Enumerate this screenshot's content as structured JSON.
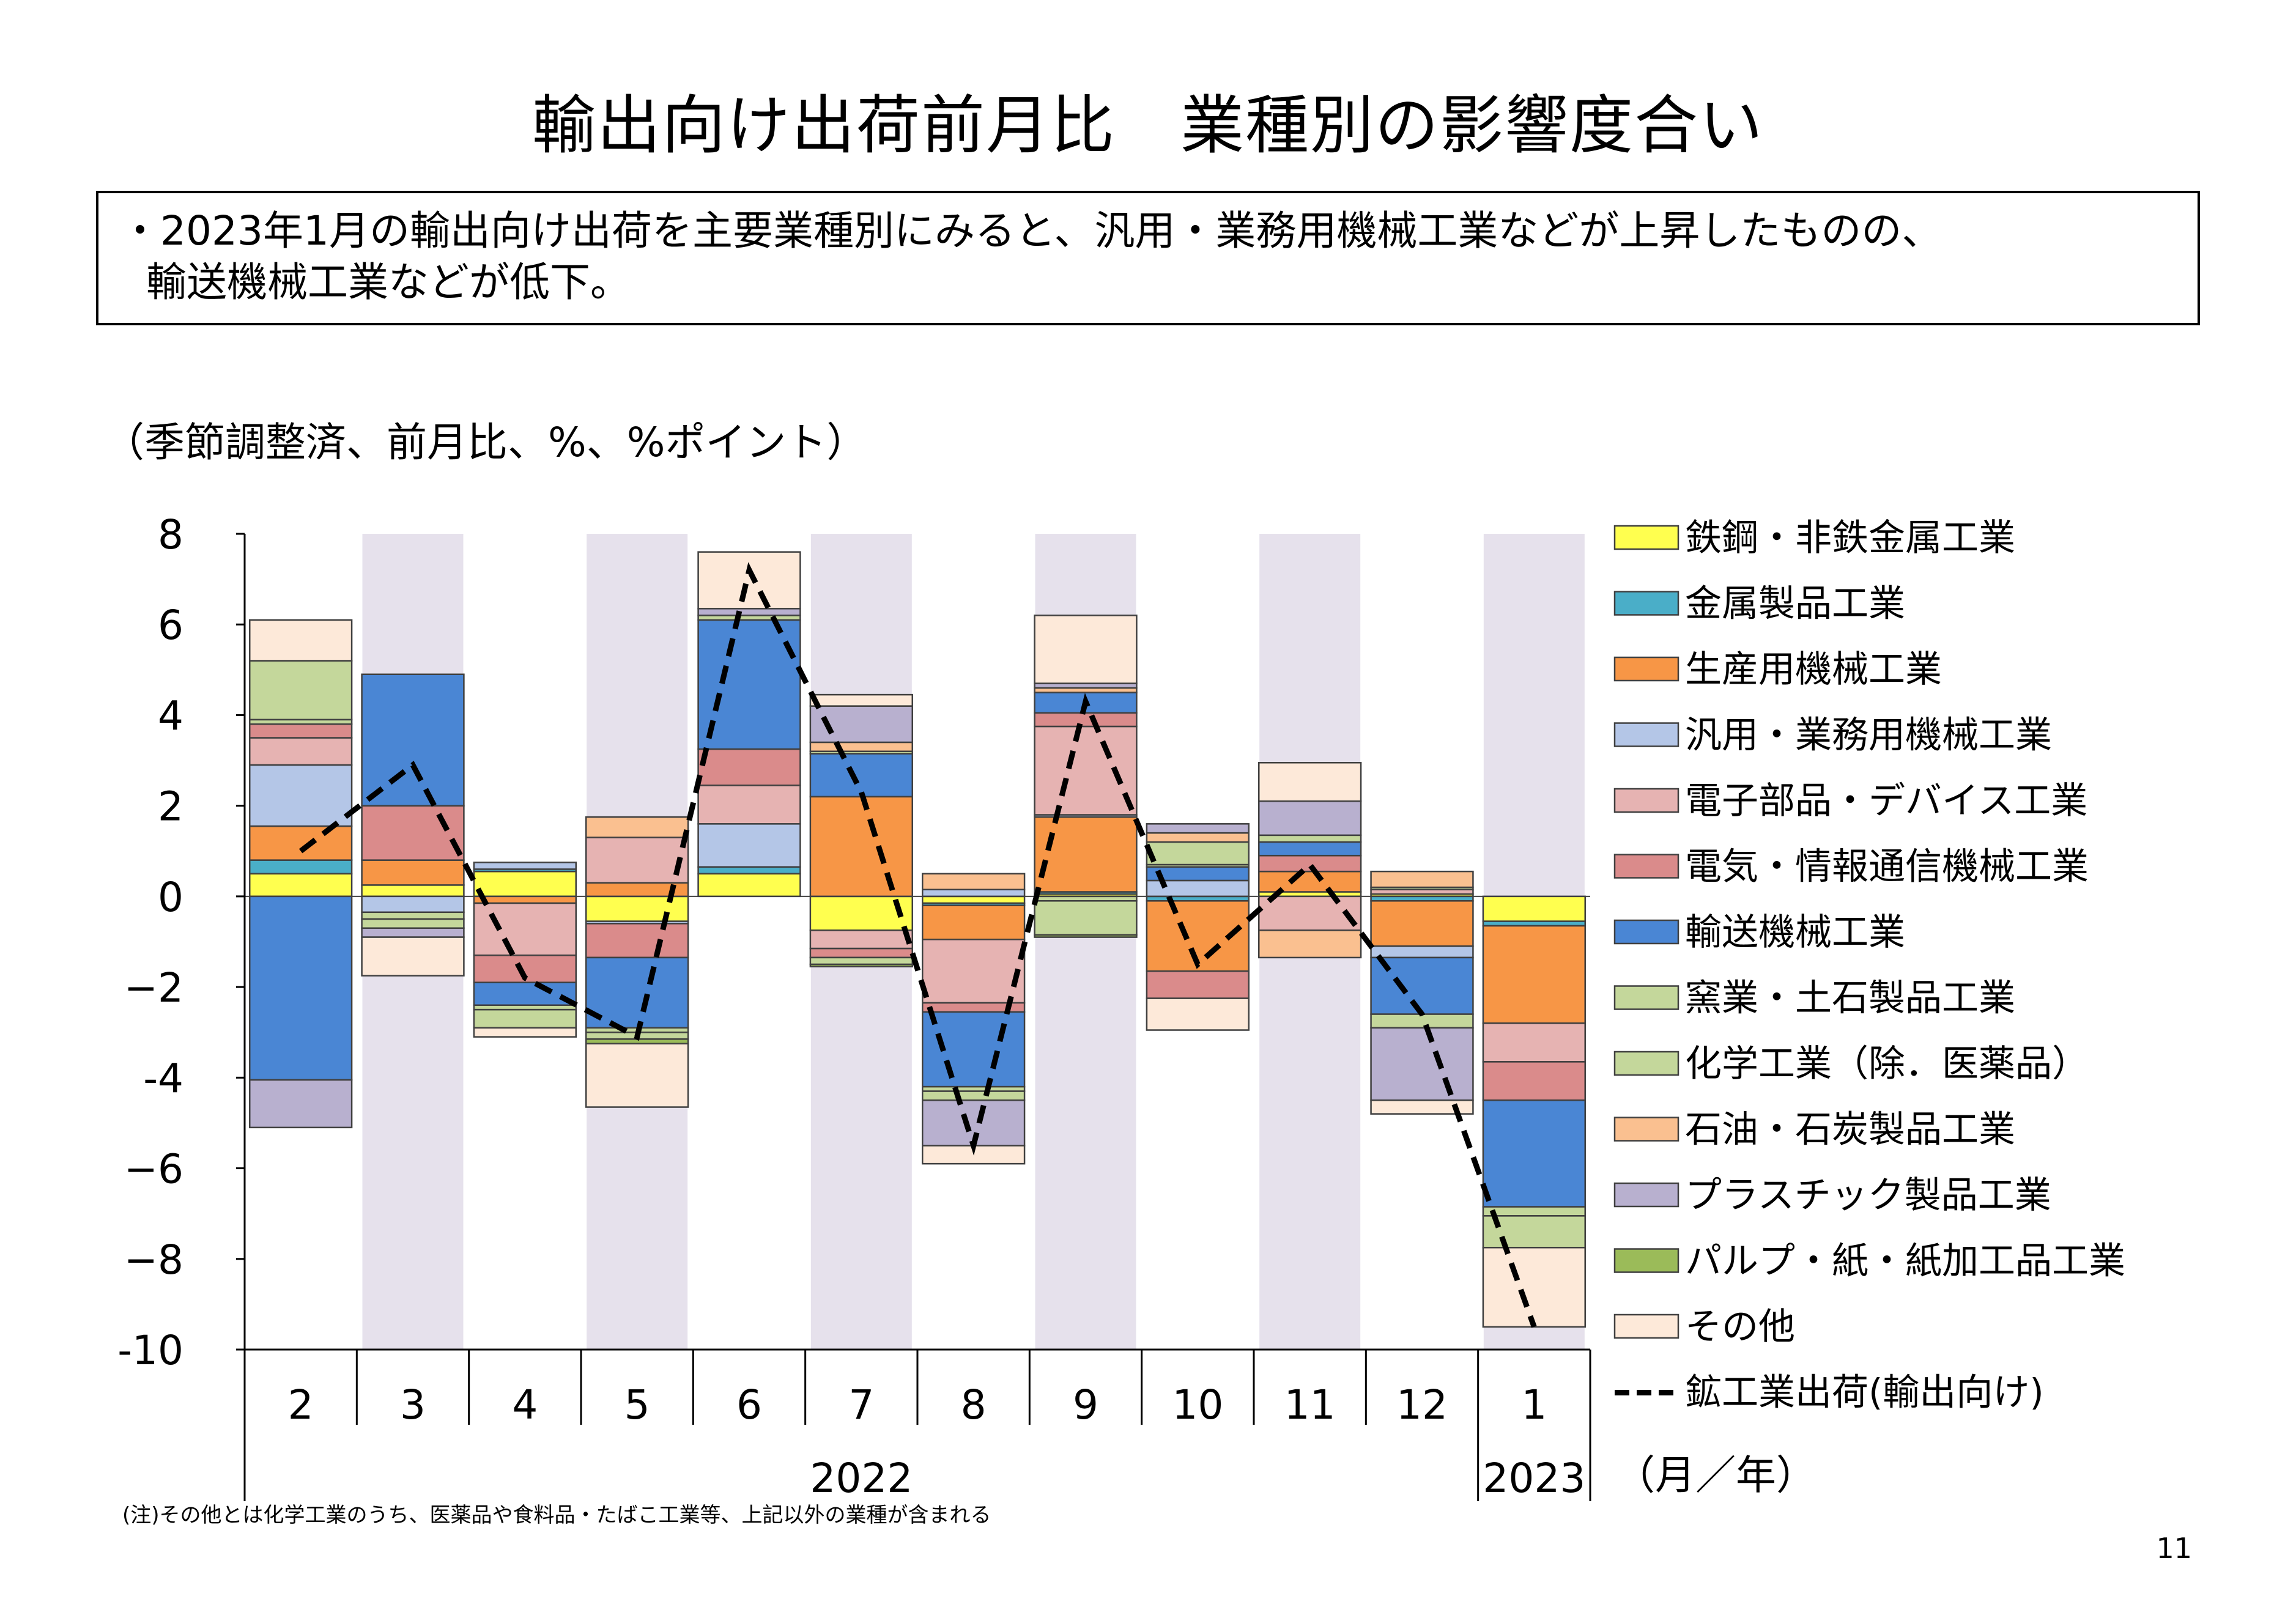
{
  "title": "輸出向け出荷前月比　業種別の影響度合い",
  "summary": {
    "line1": "・2023年1月の輸出向け出荷を主要業種別にみると、汎用・業務用機械工業などが上昇したものの、",
    "line2": "輸送機械工業などが低下。"
  },
  "unit_note": "（季節調整済、前月比、%、%ポイント）",
  "footnote": "(注)その他とは化学工業のうち、医薬品や食料品・たばこ工業等、上記以外の業種が含まれる",
  "page_number": "11",
  "chart_data": {
    "type": "bar",
    "stacked": true,
    "categories": [
      "2",
      "3",
      "4",
      "5",
      "6",
      "7",
      "8",
      "9",
      "10",
      "11",
      "12",
      "1"
    ],
    "year_labels": [
      {
        "label": "2022",
        "from": 0,
        "to": 10
      },
      {
        "label": "2023",
        "from": 11,
        "to": 11
      }
    ],
    "x_unit_label": "（月／年）",
    "ylim": [
      -10,
      8
    ],
    "yticks": [
      8,
      6,
      4,
      2,
      0,
      -2,
      -4,
      -6,
      -8,
      -10
    ],
    "ytick_labels": [
      "8",
      "6",
      "4",
      "2",
      "0",
      "−2",
      "-4",
      "−6",
      "−8",
      "-10"
    ],
    "shaded_categories": [
      1,
      3,
      5,
      7,
      9,
      11
    ],
    "shade_color": "#e6e1ec",
    "series": [
      {
        "name": "鉄鋼・非鉄金属工業",
        "color": "#ffff4f",
        "values": [
          0.5,
          0.25,
          0.55,
          -0.55,
          0.5,
          -0.75,
          -0.15,
          0.05,
          0.0,
          0.1,
          0.05,
          -0.55
        ]
      },
      {
        "name": "金属製品工業",
        "color": "#4aaec8",
        "values": [
          0.3,
          0.0,
          0.05,
          0.0,
          0.15,
          0.0,
          -0.05,
          0.05,
          -0.1,
          0.0,
          -0.1,
          -0.1
        ]
      },
      {
        "name": "生産用機械工業",
        "color": "#f79646",
        "values": [
          0.75,
          0.55,
          -0.15,
          0.3,
          0.0,
          2.2,
          -0.75,
          1.65,
          -1.55,
          0.45,
          -1.0,
          -2.15
        ]
      },
      {
        "name": "汎用・業務用機械工業",
        "color": "#b4c6e7",
        "values": [
          1.35,
          -0.35,
          0.15,
          -0.05,
          0.95,
          0.0,
          0.15,
          0.05,
          0.35,
          0.0,
          -0.25,
          0.0
        ]
      },
      {
        "name": "電子部品・デバイス工業",
        "color": "#e6b3b2",
        "values": [
          0.6,
          0.0,
          -1.15,
          1.0,
          0.85,
          -0.4,
          -1.4,
          1.95,
          0.0,
          -0.75,
          0.1,
          -0.85
        ]
      },
      {
        "name": "電気・情報通信機械工業",
        "color": "#da8b8b",
        "values": [
          0.3,
          1.2,
          -0.6,
          -0.75,
          0.8,
          -0.2,
          -0.2,
          0.3,
          -0.6,
          0.35,
          0.0,
          -0.85
        ]
      },
      {
        "name": "輸送機械工業",
        "color": "#4a86d4",
        "values": [
          -4.05,
          2.9,
          -0.5,
          -1.55,
          2.85,
          0.95,
          -1.65,
          0.45,
          0.3,
          0.3,
          -1.25,
          -2.35
        ]
      },
      {
        "name": "窯業・土石製品工業",
        "color": "#c4d79b",
        "values": [
          0.1,
          -0.15,
          -0.1,
          -0.1,
          0.1,
          0.05,
          -0.1,
          -0.1,
          0.05,
          0.0,
          0.05,
          -0.2
        ]
      },
      {
        "name": "化学工業（除．医薬品）",
        "color": "#c4d79b",
        "values": [
          1.3,
          -0.2,
          -0.4,
          -0.15,
          0.0,
          -0.15,
          -0.2,
          -0.75,
          0.5,
          0.15,
          -0.3,
          -0.7
        ]
      },
      {
        "name": "石油・石炭製品工業",
        "color": "#fac090",
        "values": [
          0.0,
          0.0,
          0.0,
          0.45,
          0.0,
          0.2,
          0.35,
          0.1,
          0.2,
          -0.6,
          0.35,
          0.0
        ]
      },
      {
        "name": "プラスチック製品工業",
        "color": "#b8b0cf",
        "values": [
          -1.05,
          -0.2,
          0.0,
          0.0,
          0.15,
          0.8,
          -1.0,
          0.1,
          0.2,
          0.75,
          -1.6,
          0.0
        ]
      },
      {
        "name": "パルプ・紙・紙加工品製品工業",
        "color": "#9bbb59",
        "values": [
          0.0,
          0.0,
          0.0,
          -0.1,
          0.0,
          -0.05,
          0.0,
          -0.05,
          0.0,
          0.0,
          0.0,
          0.0
        ]
      },
      {
        "name": "その他",
        "color": "#fde9d9",
        "values": [
          0.9,
          -0.85,
          -0.2,
          -1.4,
          1.25,
          0.25,
          -0.4,
          1.5,
          -0.7,
          0.85,
          -0.3,
          -1.75
        ]
      }
    ],
    "line": {
      "name": "鉱工業出荷（輸出向け）",
      "color": "#000000",
      "dashed": true,
      "values": [
        1.0,
        2.9,
        -1.8,
        -3.1,
        7.2,
        2.3,
        -5.5,
        4.3,
        -1.5,
        0.7,
        -2.6,
        -9.5
      ]
    },
    "legend": {
      "placement": "right",
      "labels": [
        "鉄鋼・非鉄金属工業",
        "金属製品工業",
        "生産用機械工業",
        "汎用・業務用機械工業",
        "電子部品・デバイス工業",
        "電気・情報通信機械工業",
        "輸送機械工業",
        "窯業・土石製品工業",
        "化学工業（除．医薬品）",
        "石油・石炭製品工業",
        "プラスチック製品工業",
        "パルプ・紙・紙加工品工業",
        "その他",
        "鉱工業出荷(輸出向け)"
      ]
    }
  }
}
